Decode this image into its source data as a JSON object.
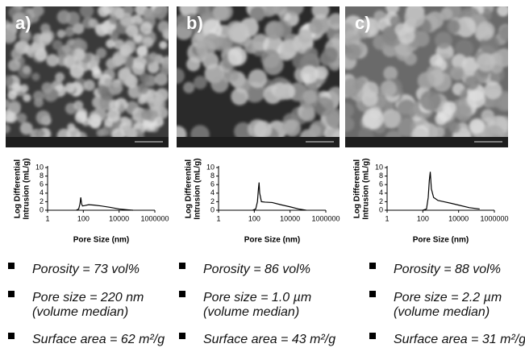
{
  "panels": [
    {
      "label": "a)",
      "bullets": [
        [
          "Porosity = 73 vol%"
        ],
        [
          "Pore size = 220 nm",
          "(volume median)"
        ],
        [
          "Surface area = 62 m²/g"
        ]
      ]
    },
    {
      "label": "b)",
      "bullets": [
        [
          "Porosity = 86 vol%"
        ],
        [
          "Pore size = 1.0 µm",
          "(volume median)"
        ],
        [
          "Surface area = 43 m²/g"
        ]
      ]
    },
    {
      "label": "c)",
      "bullets": [
        [
          "Porosity = 88 vol%"
        ],
        [
          "Pore size = 2.2 µm",
          "(volume median)"
        ],
        [
          "Surface area = 31 m²/g"
        ]
      ]
    }
  ],
  "chart_data": [
    {
      "type": "line",
      "xlabel": "Pore Size (nm)",
      "ylabel": [
        "Log Differential",
        "Intrusion (mL/g)"
      ],
      "log_x": true,
      "xlim": [
        1,
        1000000
      ],
      "xticks": [
        1,
        100,
        10000,
        1000000
      ],
      "ylim": [
        0,
        10
      ],
      "yticks": [
        0,
        2,
        4,
        6,
        8,
        10
      ],
      "color": "#000000",
      "x": [
        40,
        55,
        65,
        72,
        80,
        90,
        120,
        200,
        400,
        1000,
        3000,
        10000,
        30000,
        60000
      ],
      "values": [
        0,
        0.3,
        1.5,
        3,
        1.5,
        1,
        1.1,
        1.3,
        1.2,
        1,
        0.7,
        0.3,
        0.1,
        0
      ]
    },
    {
      "type": "line",
      "xlabel": "Pore Size (nm)",
      "ylabel": [
        "Log Differential",
        "Intrusion (mL/g)"
      ],
      "log_x": true,
      "xlim": [
        1,
        1000000
      ],
      "xticks": [
        1,
        100,
        10000,
        1000000
      ],
      "ylim": [
        0,
        10
      ],
      "yticks": [
        0,
        2,
        4,
        6,
        8,
        10
      ],
      "color": "#000000",
      "x": [
        80,
        120,
        150,
        170,
        185,
        200,
        250,
        400,
        1000,
        3000,
        10000,
        30000,
        80000
      ],
      "values": [
        0,
        0.3,
        2,
        5,
        6.5,
        4,
        2,
        1.9,
        1.8,
        1.3,
        0.8,
        0.3,
        0
      ]
    },
    {
      "type": "line",
      "xlabel": "Pore Size (nm)",
      "ylabel": [
        "Log Differential",
        "Intrusion (mL/g)"
      ],
      "log_x": true,
      "xlim": [
        1,
        1000000
      ],
      "xticks": [
        1,
        100,
        10000,
        1000000
      ],
      "ylim": [
        0,
        10
      ],
      "yticks": [
        0,
        2,
        4,
        6,
        8,
        10
      ],
      "color": "#000000",
      "x": [
        100,
        160,
        200,
        230,
        260,
        300,
        400,
        700,
        1500,
        4000,
        10000,
        40000,
        150000
      ],
      "values": [
        0,
        0.3,
        3,
        7,
        9,
        5,
        3,
        2.3,
        2,
        1.6,
        1.2,
        0.6,
        0.3
      ]
    }
  ]
}
